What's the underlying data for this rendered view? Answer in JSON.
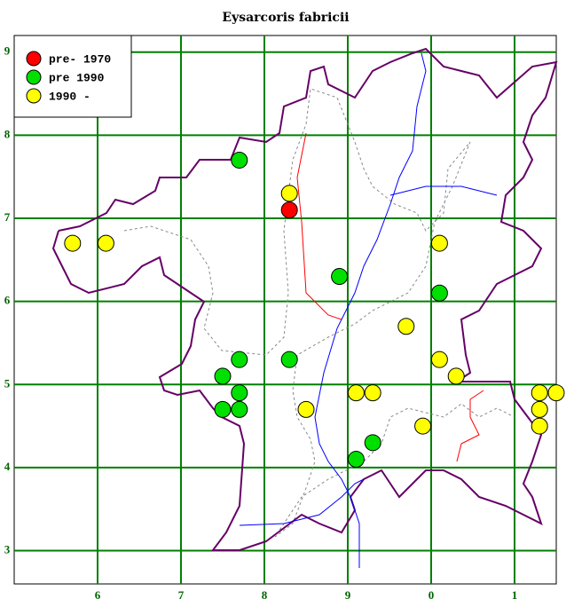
{
  "chart_data": {
    "type": "scatter",
    "title": "Eysarcoris fabricii",
    "xlim": [
      5,
      11.5
    ],
    "ylim": [
      2.6,
      9.2
    ],
    "xticks": [
      6,
      7,
      8,
      9,
      {
        "value": 10,
        "label": "0"
      },
      {
        "value": 11,
        "label": "1"
      }
    ],
    "yticks": [
      3,
      4,
      5,
      6,
      7,
      8,
      9
    ],
    "grid": true,
    "grid_color": "#008000",
    "legend": "upper left",
    "series": [
      {
        "name": "pre- 1970",
        "color": "#ff0000",
        "x": [
          8.3
        ],
        "y": [
          7.1
        ]
      },
      {
        "name": "pre 1990",
        "color": "#00e000",
        "x": [
          7.7,
          8.9,
          10.1,
          7.7,
          8.3,
          7.5,
          7.7,
          7.5,
          7.7,
          9.3,
          9.1
        ],
        "y": [
          7.7,
          6.3,
          6.1,
          5.3,
          5.3,
          5.1,
          4.9,
          4.7,
          4.7,
          4.3,
          4.1
        ]
      },
      {
        "name": "1990 -",
        "color": "#ffff00",
        "x": [
          8.3,
          5.7,
          6.1,
          10.1,
          9.7,
          10.1,
          10.3,
          9.1,
          9.3,
          11.3,
          11.5,
          8.5,
          11.3,
          9.9,
          11.3
        ],
        "y": [
          7.3,
          6.7,
          6.7,
          6.7,
          5.7,
          5.3,
          5.1,
          4.9,
          4.9,
          4.9,
          4.9,
          4.7,
          4.7,
          4.5,
          4.5
        ]
      }
    ]
  }
}
